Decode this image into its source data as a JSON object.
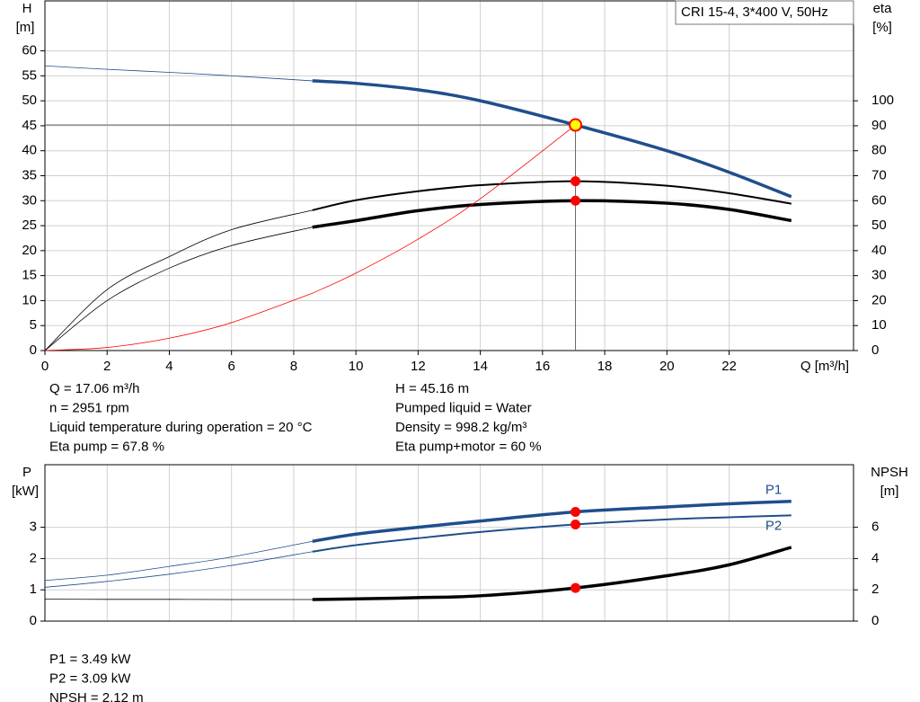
{
  "chart_data": [
    {
      "type": "line",
      "legend_box": "CRI 15-4, 3*400 V, 50Hz",
      "ylabel": "H",
      "yunit": "[m]",
      "y2label": "eta",
      "y2unit": "[%]",
      "xlabel": "Q [m³/h]",
      "xlim": [
        0,
        26
      ],
      "xticks": [
        0,
        2,
        4,
        6,
        8,
        10,
        12,
        14,
        16,
        18,
        20,
        22
      ],
      "ylim": [
        0,
        70
      ],
      "yticks": [
        0,
        5,
        10,
        15,
        20,
        25,
        30,
        35,
        40,
        45,
        50,
        55,
        60
      ],
      "y2lim": [
        0,
        140
      ],
      "y2ticks": [
        0,
        10,
        20,
        30,
        40,
        50,
        60,
        70,
        80,
        90,
        100
      ],
      "grid": true,
      "bold_from_x": 8.6,
      "duty_x": 17.06,
      "crosshair": true,
      "x": [
        0,
        2,
        4,
        6,
        8.6,
        10,
        12,
        14,
        17.06,
        20,
        22,
        24
      ],
      "series": [
        {
          "color": "#1f4e8c",
          "width": 3.5,
          "axis": "y",
          "dot_color": "#ffff00",
          "values": [
            57,
            56.3,
            55.7,
            55,
            54,
            53.5,
            52.2,
            50,
            45.16,
            40,
            35.7,
            30.8
          ]
        },
        {
          "color": "#000000",
          "width": 2,
          "axis": "y2",
          "dot_color": "#ff0000",
          "values": [
            0,
            24.4,
            37.6,
            48.4,
            56.2,
            60.2,
            63.8,
            66.2,
            67.8,
            66,
            63,
            58.8
          ]
        },
        {
          "color": "#000000",
          "width": 3.5,
          "axis": "y2",
          "dot_color": "#ff0000",
          "values": [
            0,
            20,
            33,
            42,
            49.4,
            52,
            56,
            58.5,
            60,
            59,
            56.5,
            52
          ]
        },
        {
          "color": "#ff0000",
          "width": 0.8,
          "axis": "y",
          "values": [
            0,
            0.62,
            2.48,
            5.59,
            11.48,
            15.5,
            22.3,
            30.4,
            45.16,
            null,
            null,
            null
          ]
        }
      ],
      "info": [
        [
          "Q = 17.06 m³/h",
          "n = 2951 rpm",
          "Liquid temperature during operation = 20 °C",
          "Eta pump = 67.8 %"
        ],
        [
          "H = 45.16 m",
          "Pumped liquid = Water",
          "Density = 998.2 kg/m³",
          "Eta pump+motor = 60 %"
        ]
      ]
    },
    {
      "type": "line",
      "ylabel": "P",
      "yunit": "[kW]",
      "y2label": "NPSH",
      "y2unit": "[m]",
      "xlim": [
        0,
        26
      ],
      "ylim": [
        0,
        5
      ],
      "yticks": [
        0,
        1,
        2,
        3
      ],
      "y2lim": [
        0,
        10
      ],
      "y2ticks": [
        0,
        2,
        4,
        6
      ],
      "grid": true,
      "bold_from_x": 8.6,
      "duty_x": 17.06,
      "x": [
        0,
        2,
        4,
        6,
        8.6,
        10,
        12,
        14,
        17.06,
        20,
        22,
        24
      ],
      "series": [
        {
          "name": "P1",
          "color": "#1f4e8c",
          "width": 3.5,
          "axis": "y",
          "dot_color": "#ff0000",
          "values": [
            1.3,
            1.47,
            1.75,
            2.05,
            2.55,
            2.78,
            3.0,
            3.2,
            3.49,
            3.65,
            3.75,
            3.83
          ]
        },
        {
          "name": "P2",
          "color": "#1f4e8c",
          "width": 2,
          "axis": "y",
          "dot_color": "#ff0000",
          "values": [
            1.08,
            1.27,
            1.5,
            1.78,
            2.22,
            2.43,
            2.65,
            2.85,
            3.09,
            3.25,
            3.32,
            3.38
          ]
        },
        {
          "color": "#000000",
          "width": 3.5,
          "axis": "y2",
          "dot_color": "#ff0000",
          "values": [
            1.4,
            1.39,
            1.39,
            1.38,
            1.38,
            1.42,
            1.5,
            1.62,
            2.12,
            2.9,
            3.6,
            4.72
          ]
        }
      ],
      "info": [
        [
          "P1 = 3.49 kW",
          "P2 = 3.09 kW",
          "NPSH = 2.12 m"
        ]
      ]
    }
  ]
}
